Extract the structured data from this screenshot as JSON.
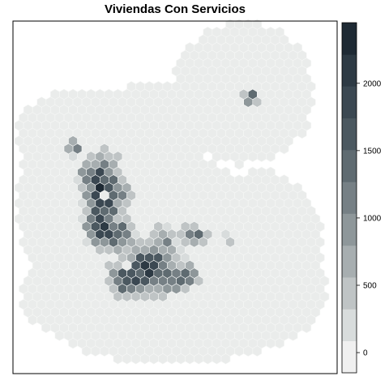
{
  "title": "Viviendas Con Servicios",
  "legend": {
    "ticks": [
      "0",
      "500",
      "1000",
      "1500",
      "2000"
    ],
    "tick_values": [
      0,
      500,
      1000,
      1500,
      2000
    ],
    "range": [
      -150,
      2450
    ],
    "colors": [
      "#f0f0f0",
      "#d8dcdc",
      "#bfc4c5",
      "#a7aeb0",
      "#8e979a",
      "#768085",
      "#5f6b71",
      "#4b5860",
      "#3b4852",
      "#2d3a44",
      "#1e2a34"
    ]
  },
  "colors": {
    "background": "#eaeceb",
    "hex_stroke": "#f6f7f6",
    "frame": "#000000"
  },
  "chart_data": {
    "type": "heatmap",
    "title": "Viviendas Con Servicios",
    "legend_ticks": [
      0,
      500,
      1000,
      1500,
      2000
    ],
    "color_levels": 11,
    "scale_range": [
      -150,
      2450
    ]
  }
}
